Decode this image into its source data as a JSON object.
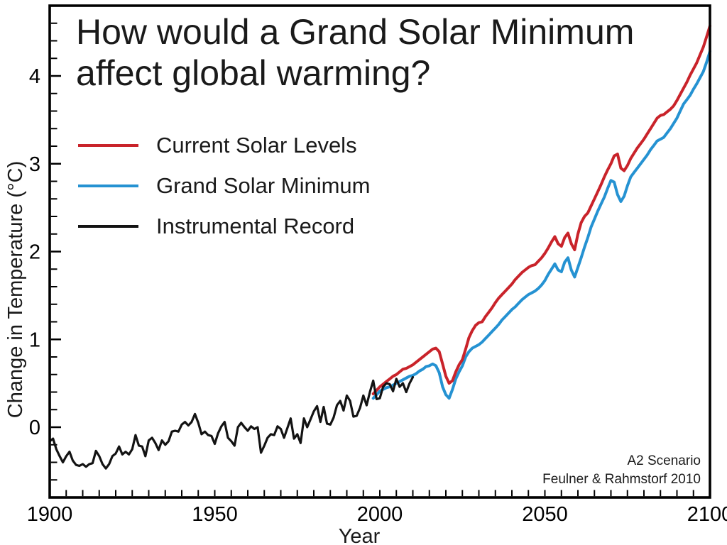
{
  "title": {
    "line1": "How would a Grand Solar Minimum",
    "line2": "affect global warming?"
  },
  "annotation": {
    "line1": "A2 Scenario",
    "line2": "Feulner & Rahmstorf 2010"
  },
  "chart_data": {
    "type": "line",
    "title": "How would a Grand Solar Minimum affect global warming?",
    "xlabel": "Year",
    "ylabel": "Change in Temperature (°C)",
    "xlim": [
      1900,
      2100
    ],
    "ylim": [
      -0.8,
      4.8
    ],
    "xticks_major": [
      1900,
      1950,
      2000,
      2050,
      2100
    ],
    "x_minor_step": 5,
    "yticks_major": [
      0,
      1,
      2,
      3,
      4
    ],
    "y_minor_step": 0.2,
    "grid": false,
    "legend_position": "upper-left-inside",
    "series": [
      {
        "id": "current-solar-levels",
        "name": "Current Solar Levels",
        "color": "#c9232a",
        "x_start": 1998,
        "x_step": 1,
        "values": [
          0.38,
          0.42,
          0.46,
          0.49,
          0.52,
          0.55,
          0.58,
          0.6,
          0.63,
          0.66,
          0.67,
          0.69,
          0.71,
          0.74,
          0.77,
          0.8,
          0.83,
          0.86,
          0.89,
          0.9,
          0.86,
          0.72,
          0.58,
          0.5,
          0.53,
          0.63,
          0.71,
          0.77,
          0.89,
          1.02,
          1.1,
          1.16,
          1.19,
          1.2,
          1.26,
          1.31,
          1.36,
          1.42,
          1.47,
          1.51,
          1.55,
          1.59,
          1.63,
          1.68,
          1.72,
          1.76,
          1.79,
          1.82,
          1.84,
          1.85,
          1.89,
          1.93,
          1.98,
          2.04,
          2.11,
          2.17,
          2.09,
          2.06,
          2.16,
          2.21,
          2.09,
          2.02,
          2.2,
          2.33,
          2.4,
          2.44,
          2.52,
          2.6,
          2.68,
          2.76,
          2.85,
          2.93,
          3.0,
          3.09,
          3.11,
          2.95,
          2.92,
          2.98,
          3.06,
          3.12,
          3.18,
          3.23,
          3.28,
          3.34,
          3.4,
          3.46,
          3.52,
          3.55,
          3.56,
          3.59,
          3.62,
          3.66,
          3.72,
          3.79,
          3.86,
          3.93,
          4.01,
          4.08,
          4.15,
          4.24,
          4.33,
          4.45,
          4.57
        ]
      },
      {
        "id": "grand-solar-minimum",
        "name": "Grand Solar Minimum",
        "color": "#2592d2",
        "x_start": 1998,
        "x_step": 1,
        "values": [
          0.33,
          0.37,
          0.41,
          0.43,
          0.45,
          0.46,
          0.48,
          0.5,
          0.52,
          0.54,
          0.56,
          0.58,
          0.59,
          0.61,
          0.64,
          0.66,
          0.69,
          0.7,
          0.72,
          0.7,
          0.62,
          0.46,
          0.37,
          0.33,
          0.43,
          0.55,
          0.63,
          0.7,
          0.8,
          0.86,
          0.9,
          0.92,
          0.94,
          0.97,
          1.01,
          1.05,
          1.09,
          1.13,
          1.17,
          1.22,
          1.26,
          1.3,
          1.34,
          1.37,
          1.41,
          1.45,
          1.48,
          1.51,
          1.53,
          1.55,
          1.58,
          1.62,
          1.67,
          1.74,
          1.8,
          1.86,
          1.79,
          1.77,
          1.88,
          1.93,
          1.79,
          1.71,
          1.82,
          1.93,
          2.05,
          2.16,
          2.28,
          2.37,
          2.46,
          2.54,
          2.62,
          2.72,
          2.81,
          2.79,
          2.65,
          2.57,
          2.63,
          2.75,
          2.85,
          2.9,
          2.95,
          3.0,
          3.05,
          3.1,
          3.16,
          3.21,
          3.26,
          3.28,
          3.3,
          3.35,
          3.4,
          3.46,
          3.52,
          3.6,
          3.68,
          3.73,
          3.78,
          3.85,
          3.91,
          3.98,
          4.05,
          4.16,
          4.28
        ]
      },
      {
        "id": "instrumental-record",
        "name": "Instrumental Record",
        "color": "#131313",
        "x_start": 1900,
        "x_step": 1,
        "values": [
          -0.16,
          -0.13,
          -0.25,
          -0.33,
          -0.4,
          -0.33,
          -0.28,
          -0.38,
          -0.43,
          -0.44,
          -0.42,
          -0.45,
          -0.42,
          -0.41,
          -0.27,
          -0.33,
          -0.42,
          -0.47,
          -0.42,
          -0.33,
          -0.3,
          -0.22,
          -0.31,
          -0.28,
          -0.31,
          -0.25,
          -0.09,
          -0.21,
          -0.22,
          -0.33,
          -0.15,
          -0.12,
          -0.18,
          -0.26,
          -0.15,
          -0.2,
          -0.16,
          -0.05,
          -0.04,
          -0.05,
          0.03,
          0.06,
          0.02,
          0.06,
          0.15,
          0.05,
          -0.08,
          -0.05,
          -0.09,
          -0.1,
          -0.19,
          -0.07,
          0.01,
          0.06,
          -0.12,
          -0.16,
          -0.21,
          0.0,
          0.05,
          0.0,
          -0.04,
          0.01,
          -0.02,
          0.0,
          -0.29,
          -0.21,
          -0.12,
          -0.08,
          -0.09,
          0.01,
          -0.02,
          -0.12,
          -0.01,
          0.1,
          -0.13,
          -0.08,
          -0.18,
          0.1,
          0.0,
          0.09,
          0.18,
          0.24,
          0.06,
          0.23,
          0.04,
          0.03,
          0.11,
          0.25,
          0.3,
          0.19,
          0.36,
          0.3,
          0.12,
          0.13,
          0.22,
          0.36,
          0.25,
          0.4,
          0.53,
          0.32,
          0.33,
          0.46,
          0.5,
          0.49,
          0.41,
          0.55,
          0.46,
          0.5,
          0.4,
          0.5,
          0.57
        ]
      }
    ]
  }
}
